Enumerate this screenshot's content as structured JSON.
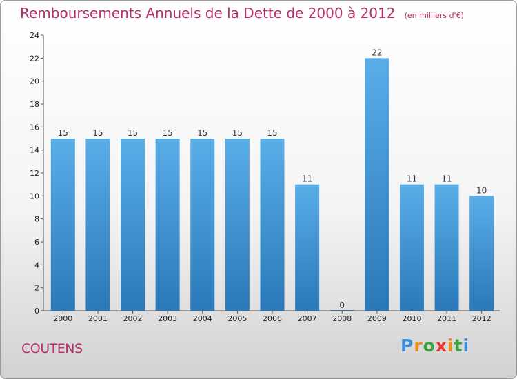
{
  "chart_data": {
    "type": "bar",
    "title": "Remboursements Annuels de la Dette de 2000 à 2012",
    "unit_note": "(en milliers d'€)",
    "categories": [
      "2000",
      "2001",
      "2002",
      "2003",
      "2004",
      "2005",
      "2006",
      "2007",
      "2008",
      "2009",
      "2010",
      "2011",
      "2012"
    ],
    "values": [
      15,
      15,
      15,
      15,
      15,
      15,
      15,
      11,
      0,
      22,
      11,
      11,
      10
    ],
    "data_labels": [
      "15",
      "15",
      "15",
      "15",
      "15",
      "15",
      "15",
      "11",
      "0",
      "22",
      "11",
      "11",
      "10"
    ],
    "yticks": [
      0,
      2,
      4,
      6,
      8,
      10,
      12,
      14,
      16,
      18,
      20,
      22,
      24
    ],
    "ylim": [
      0,
      24
    ],
    "xlabel": "",
    "ylabel": "",
    "grid": false,
    "bar_color_top": "#5aaee8",
    "bar_color_bottom": "#2a78b8"
  },
  "commune": "COUTENS",
  "logo": {
    "letters": [
      "P",
      "r",
      "o",
      "x",
      "i",
      "t",
      "i"
    ],
    "colors": [
      "#3a8fd9",
      "#f08c1a",
      "#3aa43a",
      "#e8342a",
      "#f08c1a",
      "#3aa43a",
      "#3a8fd9"
    ]
  }
}
